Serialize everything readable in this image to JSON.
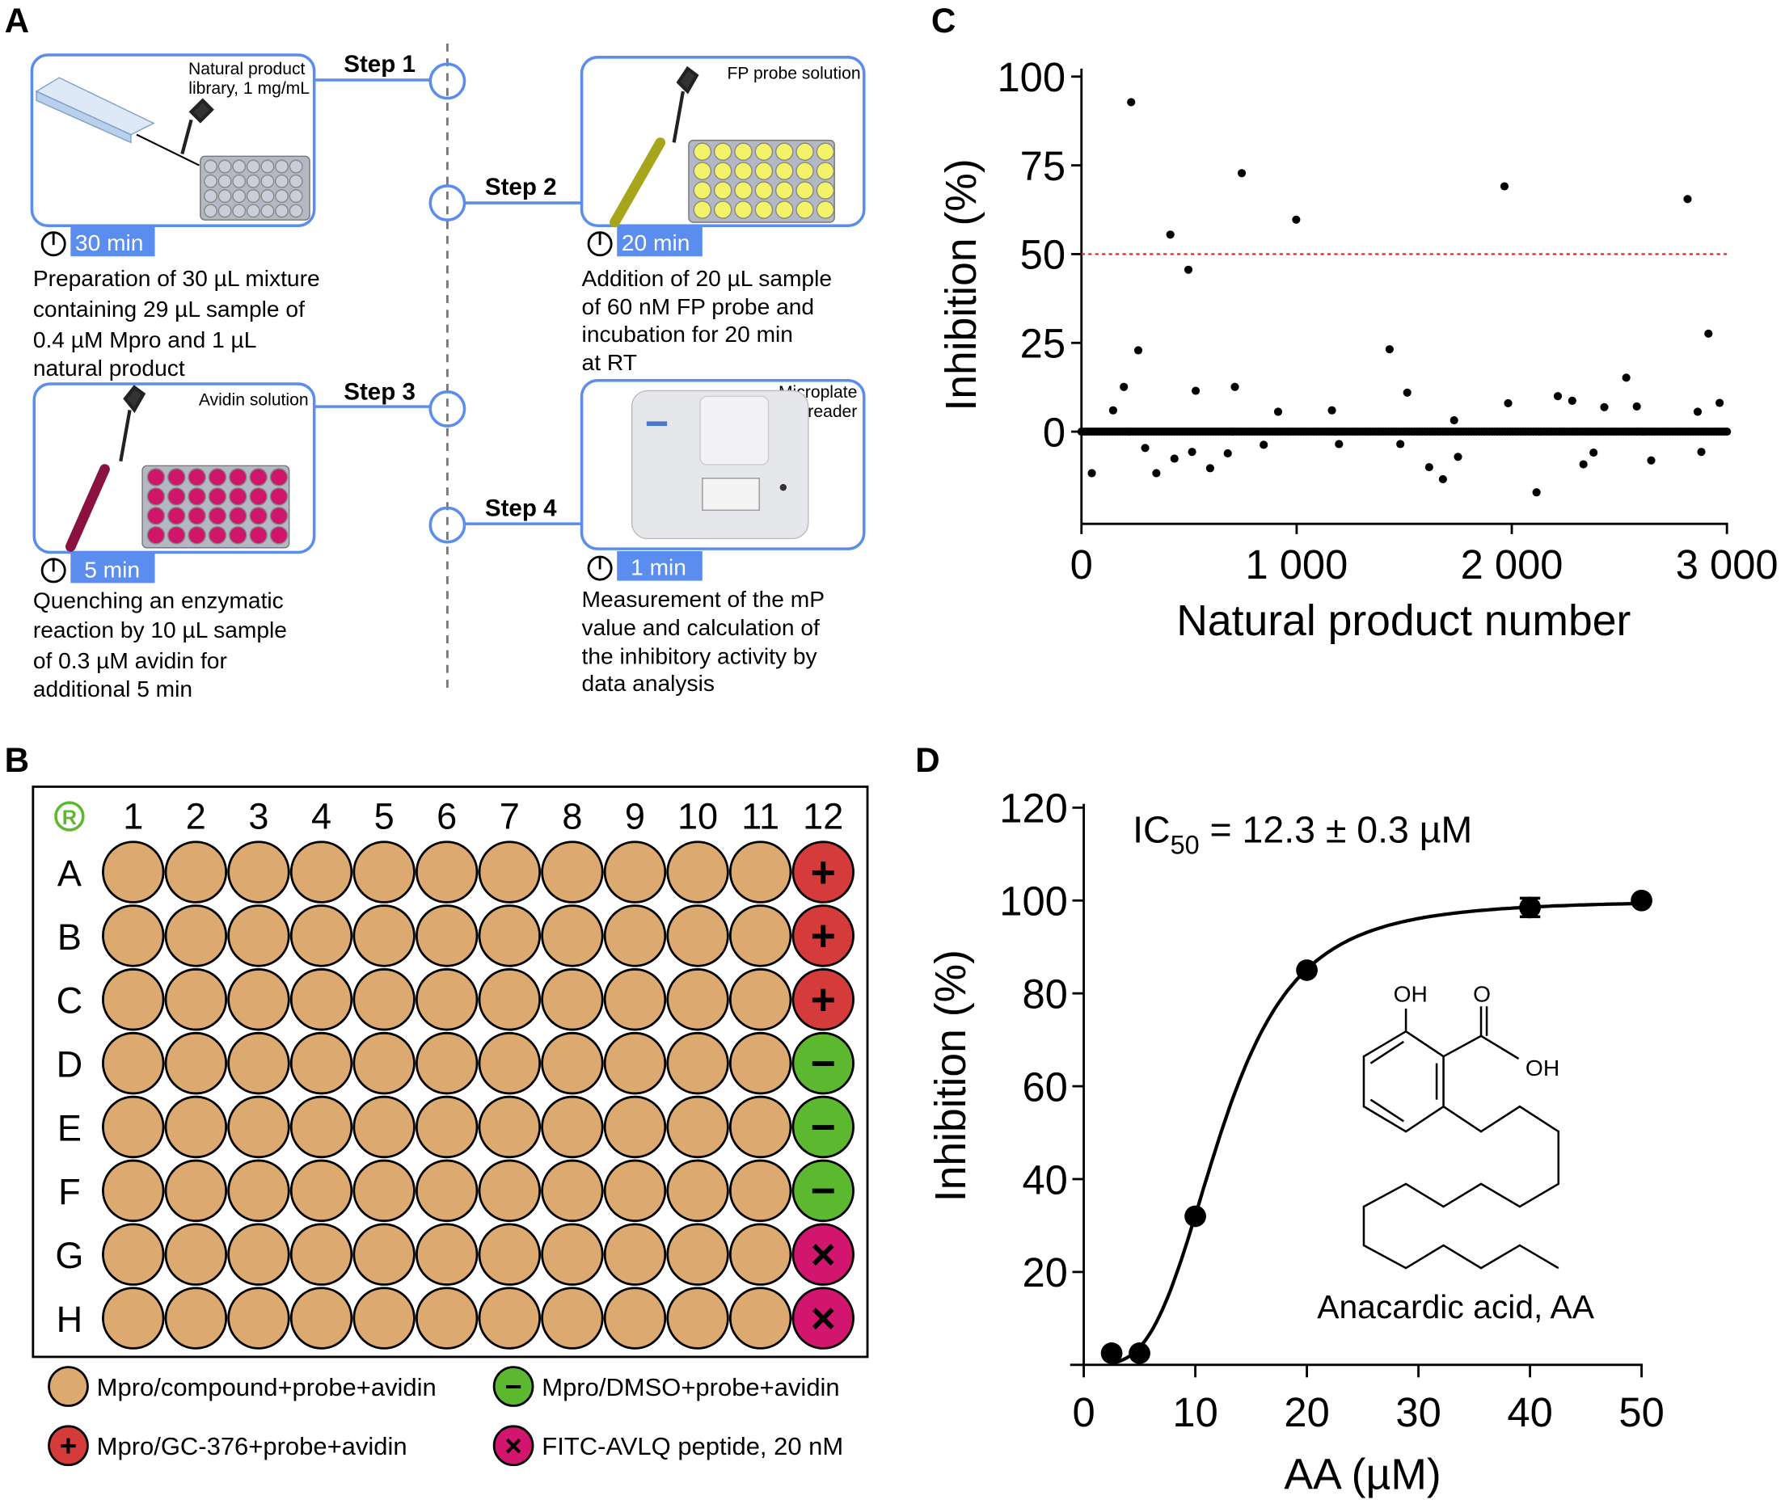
{
  "panel_a": {
    "letter": "A",
    "steps": [
      {
        "label": "Step 1",
        "box_label": [
          "Natural product",
          "library, 1 mg/mL"
        ],
        "time": "30 min",
        "description": [
          "Preparation of 30 µL mixture",
          "containing 29 µL sample of",
          "0.4 µM Mpro and 1 µL",
          "natural product"
        ],
        "well_color": "#c9ced9"
      },
      {
        "label": "Step 2",
        "box_label": [
          "FP probe solution"
        ],
        "time": "20 min",
        "description": [
          "Addition of 20 µL sample",
          "of 60 nM FP probe and",
          "incubation for 20 min",
          "at RT"
        ],
        "well_color": "#f3f36a"
      },
      {
        "label": "Step 3",
        "box_label": [
          "Avidin solution"
        ],
        "time": "5 min",
        "description": [
          "Quenching an enzymatic",
          "reaction by 10 µL sample",
          "of 0.3 µM avidin for",
          "additional 5 min"
        ],
        "well_color": "#d0166b"
      },
      {
        "label": "Step 4",
        "box_label": [
          "Microplate",
          "reader"
        ],
        "time": "1 min",
        "description": [
          "Measurement of the mP",
          "value and calculation of",
          "the inhibitory activity by",
          "data analysis"
        ]
      }
    ],
    "accent_color": "#5b8def"
  },
  "panel_b": {
    "letter": "B",
    "corner_symbol": "R",
    "columns": [
      "1",
      "2",
      "3",
      "4",
      "5",
      "6",
      "7",
      "8",
      "9",
      "10",
      "11",
      "12"
    ],
    "rows": [
      "A",
      "B",
      "C",
      "D",
      "E",
      "F",
      "G",
      "H"
    ],
    "column12_controls": [
      "+",
      "+",
      "+",
      "−",
      "−",
      "−",
      "×",
      "×"
    ],
    "colors": {
      "compound": "#dcaa70",
      "positive": "#d63b3b",
      "negative": "#5cb82e",
      "peptide": "#d2156e"
    },
    "legend": [
      {
        "symbol": "",
        "type": "compound",
        "label": "Mpro/compound+probe+avidin"
      },
      {
        "symbol": "−",
        "type": "negative",
        "label": "Mpro/DMSO+probe+avidin"
      },
      {
        "symbol": "+",
        "type": "positive",
        "label": "Mpro/GC-376+probe+avidin"
      },
      {
        "symbol": "×",
        "type": "peptide",
        "label": "FITC-AVLQ peptide, 20 nM"
      }
    ]
  },
  "chart_data": [
    {
      "panel": "C",
      "type": "scatter",
      "xlabel": "Natural product number",
      "ylabel": "Inhibition (%)",
      "xlim": [
        0,
        3000
      ],
      "ylim": [
        -20,
        100
      ],
      "xticks": [
        "0",
        "1 000",
        "2 000",
        "3 000"
      ],
      "xtick_values": [
        0,
        1000,
        2000,
        3000
      ],
      "yticks": [
        "0",
        "25",
        "50",
        "75",
        "100"
      ],
      "ytick_values": [
        0,
        25,
        50,
        75,
        100
      ],
      "threshold": {
        "y": 50,
        "color": "#e02020",
        "style": "dotted"
      },
      "points": [
        [
          48,
          -11.7
        ],
        [
          147,
          6
        ],
        [
          197,
          12.6
        ],
        [
          231,
          92.8
        ],
        [
          264,
          22.9
        ],
        [
          296,
          -4.6
        ],
        [
          348,
          -11.7
        ],
        [
          413,
          55.5
        ],
        [
          432,
          -7.6
        ],
        [
          497,
          45.6
        ],
        [
          514,
          -5.7
        ],
        [
          531,
          11.5
        ],
        [
          598,
          -10.3
        ],
        [
          680,
          -6.1
        ],
        [
          713,
          12.6
        ],
        [
          745,
          72.8
        ],
        [
          847,
          -3.7
        ],
        [
          914,
          5.6
        ],
        [
          998,
          59.7
        ],
        [
          1164,
          6
        ],
        [
          1197,
          -3.5
        ],
        [
          1432,
          23.2
        ],
        [
          1482,
          -3.5
        ],
        [
          1514,
          11
        ],
        [
          1616,
          -10
        ],
        [
          1680,
          -13.4
        ],
        [
          1732,
          3.2
        ],
        [
          1750,
          -7.1
        ],
        [
          1966,
          69.1
        ],
        [
          1983,
          8
        ],
        [
          2115,
          -17.1
        ],
        [
          2214,
          10
        ],
        [
          2281,
          8.7
        ],
        [
          2333,
          -9.2
        ],
        [
          2380,
          -5.9
        ],
        [
          2430,
          6.9
        ],
        [
          2532,
          15.2
        ],
        [
          2581,
          7.1
        ],
        [
          2648,
          -8.1
        ],
        [
          2817,
          65.5
        ],
        [
          2864,
          5.6
        ],
        [
          2881,
          -5.7
        ],
        [
          2914,
          27.6
        ],
        [
          2966,
          8.1
        ]
      ],
      "baseline_points": {
        "x_from": 0,
        "x_to": 3000,
        "step": 12,
        "y": 0
      },
      "grid": false
    },
    {
      "panel": "D",
      "type": "line",
      "xlabel": "AA (µM)",
      "ylabel": "Inhibition (%)",
      "xlim": [
        0,
        50
      ],
      "ylim": [
        0,
        120
      ],
      "xticks": [
        "0",
        "10",
        "20",
        "30",
        "40",
        "50"
      ],
      "xtick_values": [
        0,
        10,
        20,
        30,
        40,
        50
      ],
      "yticks": [
        "20",
        "40",
        "60",
        "80",
        "100",
        "120"
      ],
      "ytick_values": [
        20,
        40,
        60,
        80,
        100,
        120
      ],
      "points": [
        {
          "x": 2.5,
          "y": 2.5
        },
        {
          "x": 5,
          "y": 2.5
        },
        {
          "x": 10,
          "y": 32
        },
        {
          "x": 20,
          "y": 85
        },
        {
          "x": 40,
          "y": 98.5,
          "err": 2
        },
        {
          "x": 50,
          "y": 100
        }
      ],
      "fit": {
        "model": "hill",
        "ic50": 12.3,
        "hill": 3.6,
        "top": 100,
        "bottom": 0
      },
      "annotation": {
        "main": "IC",
        "sub": "50",
        "rest": " = 12.3 ± 0.3 µM"
      },
      "compound": {
        "name": "Anacardic acid, AA",
        "atoms": [
          "OH",
          "O",
          "OH"
        ]
      },
      "grid": false
    }
  ],
  "panel_c": {
    "letter": "C"
  },
  "panel_d": {
    "letter": "D"
  }
}
